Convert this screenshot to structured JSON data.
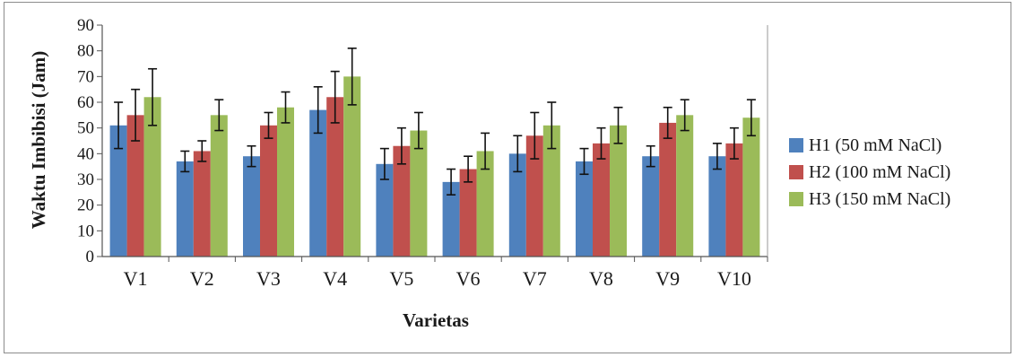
{
  "chart_data": {
    "type": "bar",
    "title": "",
    "xlabel": "Varietas",
    "ylabel": "Waktu Imbibisi (Jam)",
    "ylim": [
      0,
      90
    ],
    "yticks": [
      0,
      10,
      20,
      30,
      40,
      50,
      60,
      70,
      80,
      90
    ],
    "categories": [
      "V1",
      "V2",
      "V3",
      "V4",
      "V5",
      "V6",
      "V7",
      "V8",
      "V9",
      "V10"
    ],
    "legend_position": "right",
    "grid": false,
    "error_bars": true,
    "series": [
      {
        "name": "H1 (50 mM NaCl)",
        "color": "#4f81bd",
        "values": [
          51,
          37,
          39,
          57,
          36,
          29,
          40,
          37,
          39,
          39
        ],
        "errors": [
          9,
          4,
          4,
          9,
          6,
          5,
          7,
          5,
          4,
          5
        ]
      },
      {
        "name": "H2 (100 mM NaCl)",
        "color": "#c0504d",
        "values": [
          55,
          41,
          51,
          62,
          43,
          34,
          47,
          44,
          52,
          44
        ],
        "errors": [
          10,
          4,
          5,
          10,
          7,
          5,
          9,
          6,
          6,
          6
        ]
      },
      {
        "name": "H3 (150 mM NaCl)",
        "color": "#9bbb59",
        "values": [
          62,
          55,
          58,
          70,
          49,
          41,
          51,
          51,
          55,
          54
        ],
        "errors": [
          11,
          6,
          6,
          11,
          7,
          7,
          9,
          7,
          6,
          7
        ]
      }
    ]
  }
}
